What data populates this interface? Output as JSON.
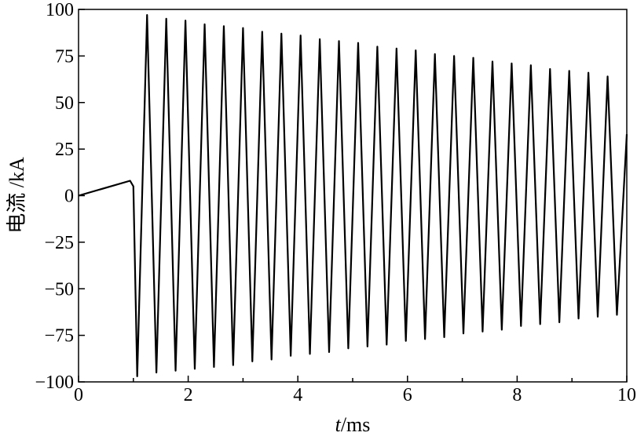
{
  "chart_data": {
    "type": "line",
    "title": "",
    "xlabel": "t/ms",
    "xlabel_italic": "t",
    "xlabel_unit": "/ms",
    "ylabel": "电流 /kA",
    "xlim": [
      0,
      10
    ],
    "ylim": [
      -100,
      100
    ],
    "x_ticks": [
      0,
      2,
      4,
      6,
      8,
      10
    ],
    "x_tick_labels": [
      "0",
      "2",
      "4",
      "6",
      "8",
      "10"
    ],
    "y_ticks": [
      100,
      75,
      50,
      25,
      0,
      -25,
      -50,
      -75,
      -100
    ],
    "y_tick_labels": [
      "100",
      "75",
      "50",
      "25",
      "0",
      "−25",
      "−50",
      "−75",
      "−100"
    ],
    "grid": false,
    "legend": "none",
    "line_color": "#000000",
    "series": [
      {
        "values_description_note_removed": true,
        "x": [
          0,
          0.94,
          1.0,
          1.07,
          1.25,
          1.42,
          1.6,
          1.77,
          1.95,
          2.12,
          2.3,
          2.47,
          2.65,
          2.82,
          3.0,
          3.17,
          3.35,
          3.52,
          3.7,
          3.87,
          4.05,
          4.22,
          4.4,
          4.57,
          4.75,
          4.92,
          5.1,
          5.27,
          5.45,
          5.62,
          5.8,
          5.97,
          6.15,
          6.32,
          6.5,
          6.67,
          6.85,
          7.02,
          7.2,
          7.37,
          7.55,
          7.72,
          7.9,
          8.07,
          8.25,
          8.42,
          8.6,
          8.77,
          8.95,
          9.12,
          9.3,
          9.47,
          9.65,
          9.82,
          10.0
        ],
        "y": [
          0,
          8,
          5,
          -97,
          97,
          -95,
          95,
          -94,
          94,
          -93,
          92,
          -92,
          91,
          -91,
          90,
          -89,
          88,
          -88,
          87,
          -86,
          86,
          -85,
          84,
          -84,
          83,
          -82,
          82,
          -81,
          80,
          -80,
          79,
          -78,
          78,
          -77,
          76,
          -76,
          75,
          -74,
          74,
          -73,
          72,
          -72,
          71,
          -70,
          70,
          -69,
          68,
          -68,
          67,
          -66,
          66,
          -65,
          64,
          -64,
          33
        ]
      }
    ]
  }
}
